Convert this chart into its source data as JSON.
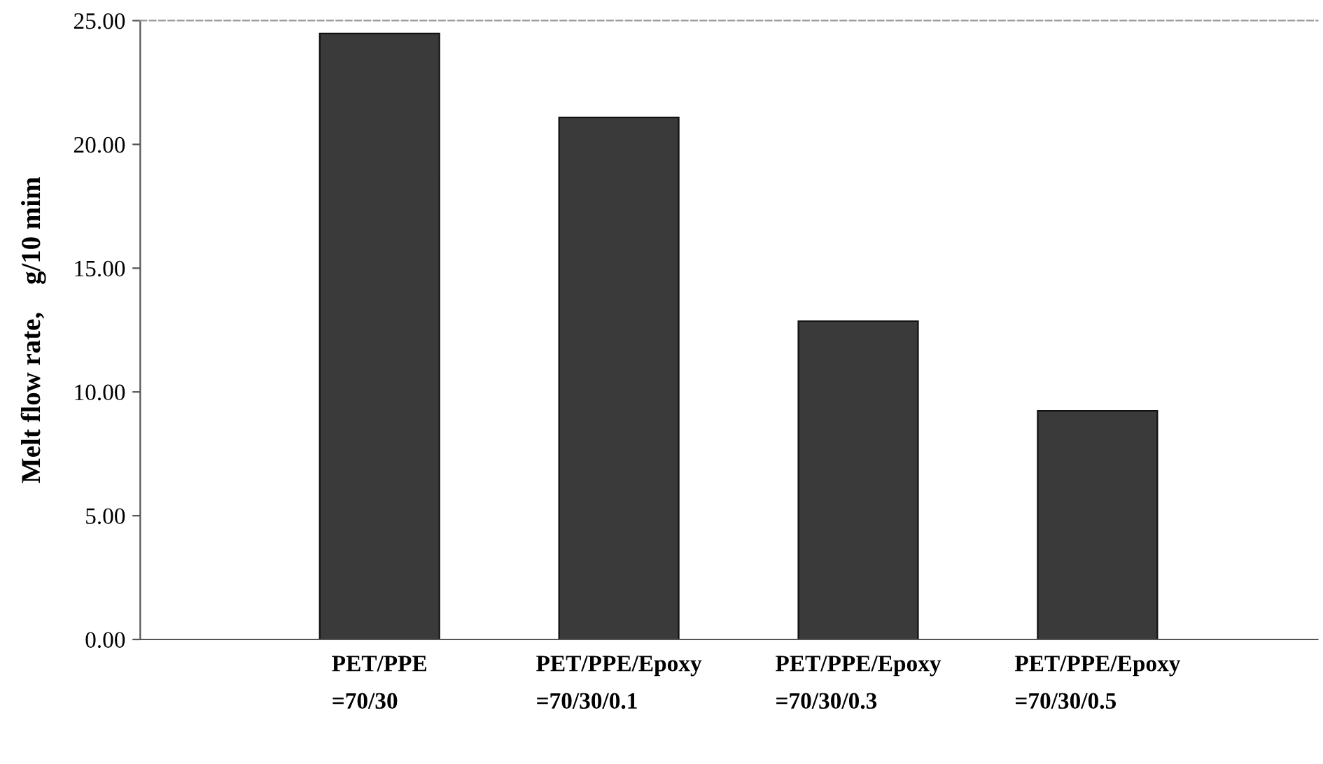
{
  "chart_data": {
    "type": "bar",
    "ylabel": "Melt flow rate,    g/10 mim",
    "categories": [
      "PET/PPE\n=70/30",
      "PET/PPE/Epoxy\n=70/30/0.1",
      "PET/PPE/Epoxy\n=70/30/0.3",
      "PET/PPE/Epoxy\n=70/30/0.5"
    ],
    "values": [
      24.48,
      21.09,
      12.86,
      9.24
    ],
    "color": "#3a3a3a",
    "ylim": [
      0,
      25
    ],
    "yticks": [
      {
        "value": 0,
        "label": "0.00"
      },
      {
        "value": 5,
        "label": "5.00"
      },
      {
        "value": 10,
        "label": "10.00"
      },
      {
        "value": 15,
        "label": "15.00"
      },
      {
        "value": 20,
        "label": "20.00"
      },
      {
        "value": 25,
        "label": "25.00"
      }
    ],
    "grid": false
  }
}
